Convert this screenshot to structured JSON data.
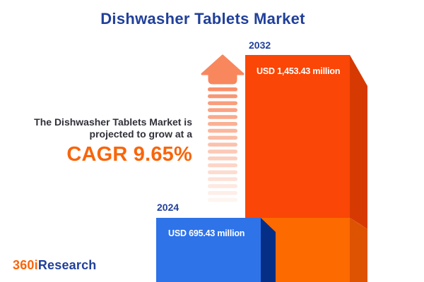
{
  "title": "Dishwasher Tablets Market",
  "chart_data": {
    "type": "bar",
    "categories": [
      "2024",
      "2032"
    ],
    "values": [
      695.43,
      1453.43
    ],
    "value_labels": [
      "USD 695.43 million",
      "USD 1,453.43 million"
    ],
    "unit": "USD million",
    "title": "Dishwasher Tablets Market",
    "cagr_percent": 9.65,
    "legend": "none",
    "grid": "off"
  },
  "bars": [
    {
      "year": "2024",
      "value_label": "USD 695.43 million",
      "front_color": "#2E73E8",
      "side_color": "#052F86"
    },
    {
      "year": "2032",
      "value_label": "USD 1,453.43 million",
      "front_color": "#FA4606",
      "side_color": "#D63A02",
      "lower_front_color": "#FC6A00",
      "lower_side_color": "#DD5301"
    }
  ],
  "growth": {
    "line1": "The Dishwasher Tablets Market is",
    "line2": "projected to grow at a",
    "cagr_label": "CAGR 9.65%"
  },
  "logo": {
    "part1": "360i",
    "part2": "Research"
  },
  "colors": {
    "title_blue": "#21409A",
    "accent_orange": "#F8650A",
    "text_dark": "#303039",
    "arrow_coral": "#F8875E",
    "background": "#FFFFFF"
  }
}
